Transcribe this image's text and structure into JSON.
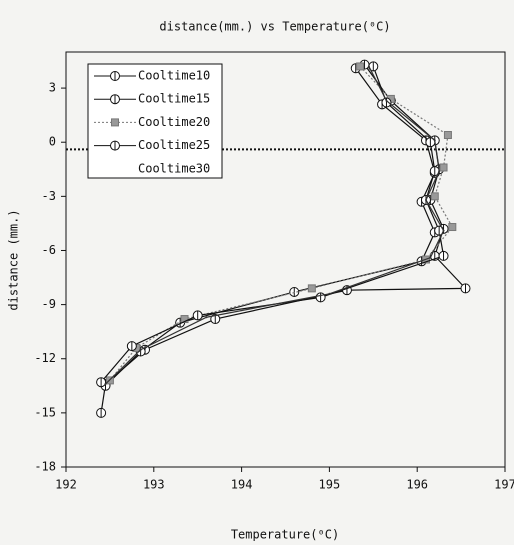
{
  "chart_data": {
    "type": "line",
    "title": "distance(mm.) vs Temperature(⁰C)",
    "x_label": "Temperature(⁰C)",
    "y_label": "distance (mm.)",
    "xlim": [
      192,
      197
    ],
    "xticks": [
      192,
      193,
      194,
      195,
      196,
      197
    ],
    "ylim": [
      -18,
      5
    ],
    "yticks": [
      3,
      0,
      -3,
      -6,
      -9,
      -12,
      -15,
      -18
    ],
    "hline": -0.4,
    "series": [
      {
        "name": "Cooltime10",
        "color": "#111111",
        "marker": "circle",
        "dash": "solid",
        "x": [
          195.4,
          195.7,
          196.2,
          196.25,
          196.15,
          196.3,
          196.2,
          196.55,
          195.2,
          193.7,
          192.9,
          192.45,
          192.4
        ],
        "values": [
          4.3,
          2.3,
          0.1,
          -1.5,
          -3.2,
          -4.8,
          -6.3,
          -8.1,
          -8.2,
          -9.8,
          -11.5,
          -13.4,
          -15.0
        ]
      },
      {
        "name": "Cooltime15",
        "color": "#111111",
        "marker": "circle",
        "dash": "solid",
        "x": [
          195.3,
          195.6,
          196.1,
          196.2,
          196.05,
          196.2,
          196.05,
          194.6,
          193.3,
          192.85,
          192.45
        ],
        "values": [
          4.1,
          2.1,
          0.1,
          -1.7,
          -3.3,
          -5.0,
          -6.6,
          -8.3,
          -10.0,
          -11.6,
          -13.5
        ]
      },
      {
        "name": "Cooltime20",
        "color": "#777777",
        "marker": "square",
        "dash": "dotted",
        "x": [
          195.35,
          195.7,
          196.35,
          196.3,
          196.2,
          196.4,
          196.1,
          194.8,
          193.35,
          192.8,
          192.5
        ],
        "values": [
          4.2,
          2.4,
          0.4,
          -1.4,
          -3.0,
          -4.7,
          -6.5,
          -8.1,
          -9.8,
          -11.4,
          -13.2
        ]
      },
      {
        "name": "Cooltime25",
        "color": "#111111",
        "marker": "circle",
        "dash": "solid",
        "x": [
          195.5,
          195.65,
          196.15,
          196.2,
          196.1,
          196.25,
          196.3,
          194.9,
          193.5,
          192.75,
          192.4
        ],
        "values": [
          4.2,
          2.2,
          0.0,
          -1.6,
          -3.2,
          -4.9,
          -6.3,
          -8.6,
          -9.6,
          -11.3,
          -13.3
        ]
      },
      {
        "name": "Cooltime30",
        "color": "#333333",
        "marker": "none",
        "dash": "solid",
        "x": [
          195.45,
          195.65,
          196.2,
          196.25,
          196.1,
          196.3,
          196.15,
          195.0,
          193.6,
          192.85,
          192.45
        ],
        "values": [
          4.2,
          2.3,
          0.1,
          -1.6,
          -3.2,
          -4.9,
          -6.4,
          -8.4,
          -9.7,
          -11.5,
          -13.4
        ]
      }
    ]
  }
}
